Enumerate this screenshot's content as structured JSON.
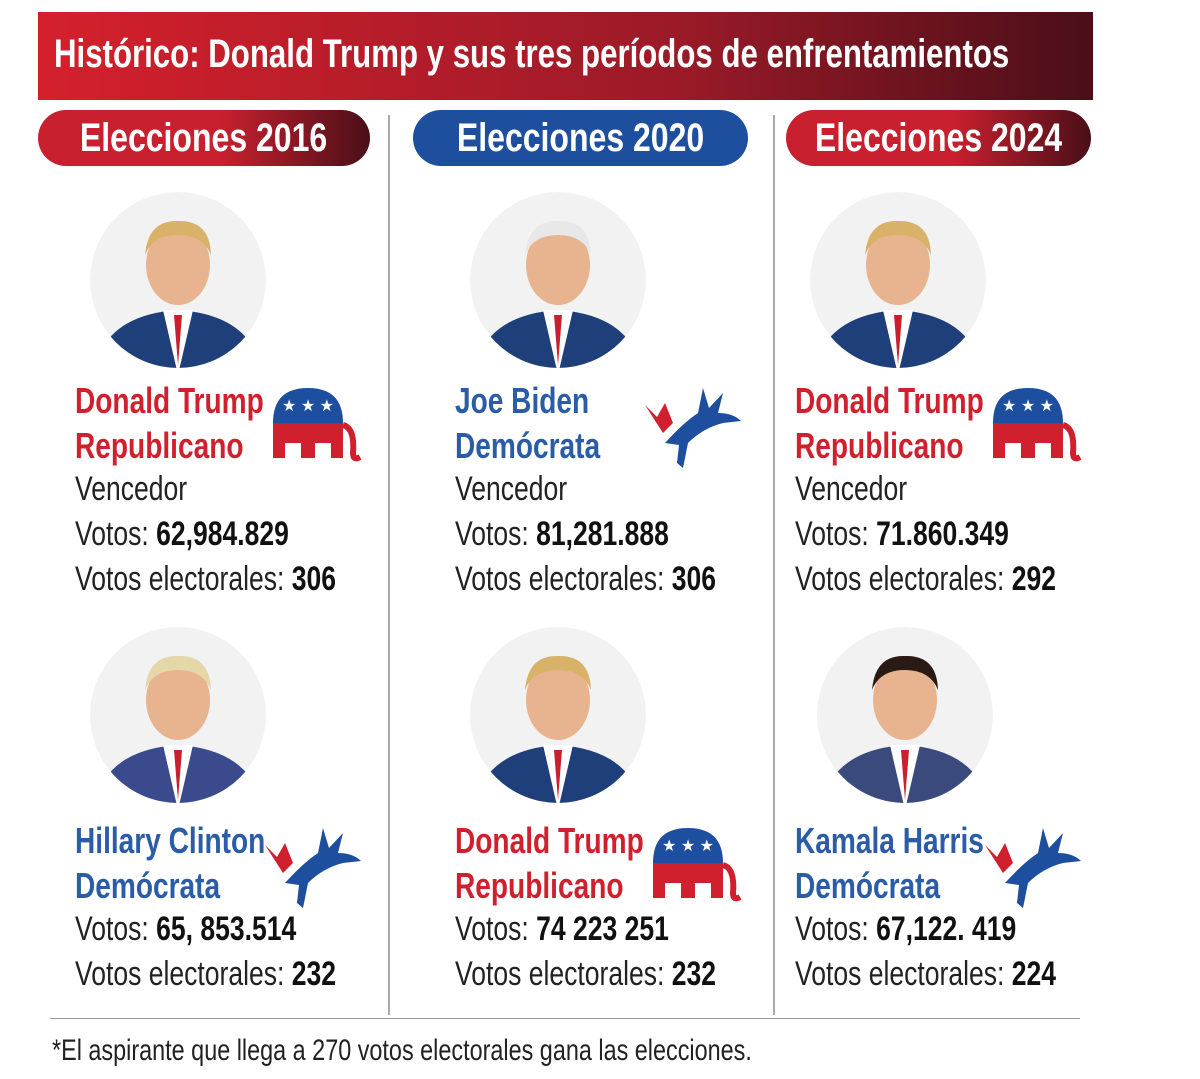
{
  "header": {
    "title": "Histórico: Donald Trump y sus tres períodos de enfrentamientos"
  },
  "columns": [
    {
      "heading": "Elecciones 2016",
      "color": "#c8202e",
      "candidates": [
        {
          "name": "Donald Trump",
          "party": "Republicano",
          "color": "#d0202e",
          "emblem": "elephant",
          "status": "Vencedor",
          "votes_label": "Votos:",
          "votes": "62,984.829",
          "ev_label": "Votos electorales:",
          "ev": 306
        },
        {
          "name": "Hillary Clinton",
          "party": "Demócrata",
          "color": "#2a5ca8",
          "emblem": "donkey",
          "votes_label": "Votos:",
          "votes": "65, 853.514",
          "ev_label": "Votos electorales:",
          "ev": 232
        }
      ]
    },
    {
      "heading": "Elecciones 2020",
      "color": "#1e4f9e",
      "candidates": [
        {
          "name": "Joe Biden",
          "party": "Demócrata",
          "color": "#2a5ca8",
          "emblem": "donkey",
          "status": "Vencedor",
          "votes_label": "Votos:",
          "votes": "81,281.888",
          "ev_label": "Votos electorales:",
          "ev": 306
        },
        {
          "name": "Donald Trump",
          "party": "Republicano",
          "color": "#d0202e",
          "emblem": "elephant",
          "votes_label": "Votos:",
          "votes": "74 223 251",
          "ev_label": "Votos electorales:",
          "ev": 232
        }
      ]
    },
    {
      "heading": "Elecciones 2024",
      "color": "#c8202e",
      "candidates": [
        {
          "name": "Donald Trump",
          "party": "Republicano",
          "color": "#d0202e",
          "emblem": "elephant",
          "status": "Vencedor",
          "votes_label": "Votos:",
          "votes": "71.860.349",
          "ev_label": "Votos electorales:",
          "ev": 292
        },
        {
          "name": "Kamala Harris",
          "party": "Demócrata",
          "color": "#2a5ca8",
          "emblem": "donkey",
          "votes_label": "Votos:",
          "votes": "67,122. 419",
          "ev_label": "Votos electorales:",
          "ev": 224
        }
      ]
    }
  ],
  "footnote": "*El aspirante que llega a 270 votos electorales gana las elecciones."
}
